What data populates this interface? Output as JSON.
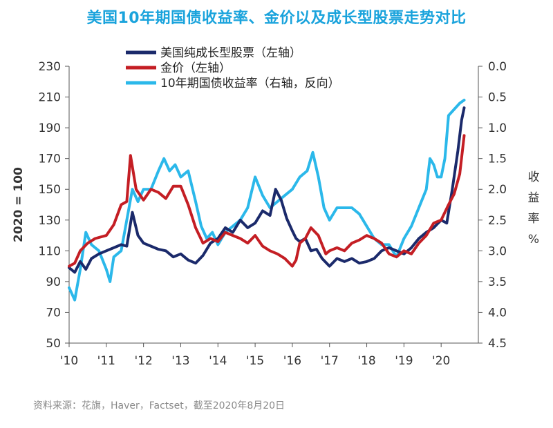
{
  "page": {
    "title": "美国10年期国债收益率、金价以及成长型股票走势对比",
    "source": "资料来源：花旗，Haver，Factset，截至2020年8月20日"
  },
  "chart_data": {
    "type": "line",
    "title": "美国10年期国债收益率、金价以及成长型股票走势对比",
    "ylabel": "2020 = 100",
    "ylabel_right": [
      "收",
      "益",
      "率",
      "%"
    ],
    "ylim": [
      50,
      230
    ],
    "yticks": [
      50,
      70,
      90,
      110,
      130,
      150,
      170,
      190,
      210,
      230
    ],
    "ylim_right": [
      0.0,
      4.5
    ],
    "right_axis_inverted": true,
    "yticks_right": [
      "0.0",
      "0.5",
      "1.0",
      "1.5",
      "2.0",
      "2.5",
      "3.0",
      "3.5",
      "4.0",
      "4.5"
    ],
    "xlim": [
      2010,
      2021
    ],
    "xticks": [
      "'10",
      "'11",
      "'12",
      "'13",
      "'14",
      "'15",
      "'16",
      "'17",
      "'18",
      "'19",
      "'20"
    ],
    "legend_position": "top-center",
    "grid": false,
    "series": [
      {
        "name": "美国纯成长型股票（左轴）",
        "axis": "left",
        "color": "#1b2a6b",
        "points": [
          [
            2010.0,
            99
          ],
          [
            2010.15,
            96
          ],
          [
            2010.3,
            103
          ],
          [
            2010.45,
            98
          ],
          [
            2010.6,
            105
          ],
          [
            2010.8,
            108
          ],
          [
            2011.0,
            110
          ],
          [
            2011.2,
            112
          ],
          [
            2011.4,
            114
          ],
          [
            2011.55,
            113
          ],
          [
            2011.7,
            135
          ],
          [
            2011.85,
            120
          ],
          [
            2012.0,
            115
          ],
          [
            2012.2,
            113
          ],
          [
            2012.4,
            111
          ],
          [
            2012.6,
            110
          ],
          [
            2012.8,
            106
          ],
          [
            2013.0,
            108
          ],
          [
            2013.2,
            104
          ],
          [
            2013.4,
            102
          ],
          [
            2013.6,
            107
          ],
          [
            2013.8,
            115
          ],
          [
            2014.0,
            118
          ],
          [
            2014.2,
            125
          ],
          [
            2014.4,
            122
          ],
          [
            2014.6,
            130
          ],
          [
            2014.8,
            125
          ],
          [
            2015.0,
            128
          ],
          [
            2015.2,
            136
          ],
          [
            2015.4,
            133
          ],
          [
            2015.55,
            150
          ],
          [
            2015.7,
            143
          ],
          [
            2015.85,
            131
          ],
          [
            2016.0,
            123
          ],
          [
            2016.1,
            118
          ],
          [
            2016.2,
            116
          ],
          [
            2016.35,
            118
          ],
          [
            2016.5,
            110
          ],
          [
            2016.65,
            111
          ],
          [
            2016.8,
            105
          ],
          [
            2017.0,
            100
          ],
          [
            2017.2,
            105
          ],
          [
            2017.4,
            103
          ],
          [
            2017.6,
            105
          ],
          [
            2017.8,
            102
          ],
          [
            2018.0,
            103
          ],
          [
            2018.2,
            105
          ],
          [
            2018.4,
            110
          ],
          [
            2018.6,
            112
          ],
          [
            2018.8,
            110
          ],
          [
            2019.0,
            108
          ],
          [
            2019.2,
            112
          ],
          [
            2019.4,
            118
          ],
          [
            2019.6,
            122
          ],
          [
            2019.8,
            125
          ],
          [
            2020.0,
            130
          ],
          [
            2020.15,
            128
          ],
          [
            2020.3,
            150
          ],
          [
            2020.45,
            175
          ],
          [
            2020.55,
            195
          ],
          [
            2020.62,
            203
          ]
        ]
      },
      {
        "name": "金价（左轴）",
        "axis": "left",
        "color": "#c41e24",
        "points": [
          [
            2010.0,
            100
          ],
          [
            2010.15,
            102
          ],
          [
            2010.3,
            110
          ],
          [
            2010.5,
            115
          ],
          [
            2010.7,
            118
          ],
          [
            2011.0,
            120
          ],
          [
            2011.2,
            127
          ],
          [
            2011.4,
            140
          ],
          [
            2011.55,
            142
          ],
          [
            2011.65,
            172
          ],
          [
            2011.8,
            150
          ],
          [
            2012.0,
            143
          ],
          [
            2012.2,
            150
          ],
          [
            2012.4,
            148
          ],
          [
            2012.6,
            144
          ],
          [
            2012.8,
            152
          ],
          [
            2013.0,
            152
          ],
          [
            2013.2,
            140
          ],
          [
            2013.4,
            125
          ],
          [
            2013.6,
            115
          ],
          [
            2013.8,
            118
          ],
          [
            2014.0,
            116
          ],
          [
            2014.2,
            122
          ],
          [
            2014.4,
            120
          ],
          [
            2014.6,
            118
          ],
          [
            2014.8,
            115
          ],
          [
            2015.0,
            120
          ],
          [
            2015.2,
            113
          ],
          [
            2015.4,
            110
          ],
          [
            2015.6,
            108
          ],
          [
            2015.8,
            105
          ],
          [
            2016.0,
            100
          ],
          [
            2016.1,
            104
          ],
          [
            2016.2,
            115
          ],
          [
            2016.35,
            118
          ],
          [
            2016.5,
            125
          ],
          [
            2016.7,
            120
          ],
          [
            2016.9,
            108
          ],
          [
            2017.0,
            110
          ],
          [
            2017.2,
            112
          ],
          [
            2017.4,
            110
          ],
          [
            2017.6,
            115
          ],
          [
            2017.8,
            117
          ],
          [
            2018.0,
            120
          ],
          [
            2018.2,
            118
          ],
          [
            2018.4,
            115
          ],
          [
            2018.6,
            108
          ],
          [
            2018.8,
            106
          ],
          [
            2019.0,
            110
          ],
          [
            2019.2,
            108
          ],
          [
            2019.4,
            115
          ],
          [
            2019.6,
            120
          ],
          [
            2019.8,
            128
          ],
          [
            2020.0,
            130
          ],
          [
            2020.2,
            140
          ],
          [
            2020.35,
            147
          ],
          [
            2020.5,
            160
          ],
          [
            2020.62,
            185
          ]
        ]
      },
      {
        "name": "10年期国债收益率（右轴，反向）",
        "axis": "right",
        "color": "#2bb8ea",
        "points": [
          [
            2010.0,
            3.6
          ],
          [
            2010.15,
            3.8
          ],
          [
            2010.3,
            3.3
          ],
          [
            2010.45,
            2.7
          ],
          [
            2010.6,
            2.9
          ],
          [
            2010.8,
            3.0
          ],
          [
            2011.0,
            3.3
          ],
          [
            2011.1,
            3.5
          ],
          [
            2011.2,
            3.1
          ],
          [
            2011.4,
            3.0
          ],
          [
            2011.55,
            2.5
          ],
          [
            2011.7,
            2.0
          ],
          [
            2011.85,
            2.2
          ],
          [
            2012.0,
            2.0
          ],
          [
            2012.2,
            2.0
          ],
          [
            2012.4,
            1.7
          ],
          [
            2012.55,
            1.5
          ],
          [
            2012.7,
            1.7
          ],
          [
            2012.85,
            1.6
          ],
          [
            2013.0,
            1.8
          ],
          [
            2013.2,
            1.7
          ],
          [
            2013.4,
            2.2
          ],
          [
            2013.55,
            2.6
          ],
          [
            2013.7,
            2.8
          ],
          [
            2013.85,
            2.7
          ],
          [
            2014.0,
            2.9
          ],
          [
            2014.2,
            2.7
          ],
          [
            2014.4,
            2.6
          ],
          [
            2014.6,
            2.5
          ],
          [
            2014.8,
            2.3
          ],
          [
            2015.0,
            1.8
          ],
          [
            2015.2,
            2.1
          ],
          [
            2015.4,
            2.3
          ],
          [
            2015.6,
            2.2
          ],
          [
            2015.8,
            2.1
          ],
          [
            2016.0,
            2.0
          ],
          [
            2016.2,
            1.8
          ],
          [
            2016.4,
            1.7
          ],
          [
            2016.55,
            1.4
          ],
          [
            2016.7,
            1.8
          ],
          [
            2016.85,
            2.3
          ],
          [
            2017.0,
            2.5
          ],
          [
            2017.2,
            2.3
          ],
          [
            2017.4,
            2.3
          ],
          [
            2017.6,
            2.3
          ],
          [
            2017.8,
            2.4
          ],
          [
            2018.0,
            2.6
          ],
          [
            2018.2,
            2.8
          ],
          [
            2018.4,
            2.9
          ],
          [
            2018.6,
            2.9
          ],
          [
            2018.8,
            3.1
          ],
          [
            2019.0,
            2.8
          ],
          [
            2019.2,
            2.6
          ],
          [
            2019.4,
            2.3
          ],
          [
            2019.6,
            2.0
          ],
          [
            2019.7,
            1.5
          ],
          [
            2019.8,
            1.6
          ],
          [
            2019.9,
            1.8
          ],
          [
            2020.0,
            1.8
          ],
          [
            2020.1,
            1.5
          ],
          [
            2020.2,
            0.8
          ],
          [
            2020.35,
            0.7
          ],
          [
            2020.5,
            0.6
          ],
          [
            2020.62,
            0.55
          ]
        ]
      }
    ]
  }
}
